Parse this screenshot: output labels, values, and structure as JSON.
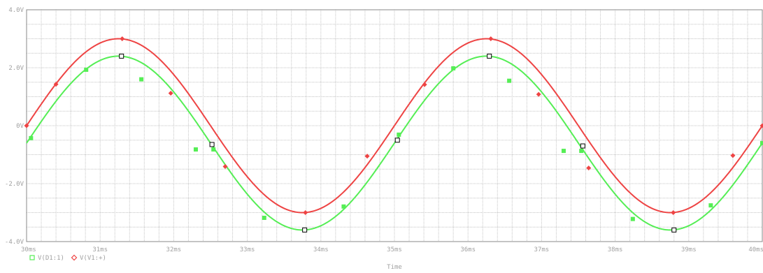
{
  "chart_data": {
    "type": "line",
    "xlabel": "Time",
    "ylabel": "",
    "xlim": [
      30,
      40
    ],
    "ylim": [
      -4,
      4
    ],
    "x_ticks": [
      "30ms",
      "31ms",
      "32ms",
      "33ms",
      "34ms",
      "35ms",
      "36ms",
      "37ms",
      "38ms",
      "39ms",
      "40ms"
    ],
    "y_ticks": [
      {
        "value": 4,
        "label": "4.0V"
      },
      {
        "value": 2,
        "label": "2.0V"
      },
      {
        "value": 0,
        "label": "0V"
      },
      {
        "value": -2,
        "label": "-2.0V"
      },
      {
        "value": -4,
        "label": "-4.0V"
      }
    ],
    "grid": true,
    "legend_position": "bottom-left",
    "series": [
      {
        "name": "V(D1:1)",
        "color": "#55ee55",
        "marker": "square",
        "amplitude": 3.0,
        "offset": -0.6,
        "frequency_khz": 0.2,
        "marker_x": [
          30.06,
          30.81,
          31.29,
          31.56,
          32.3,
          32.54,
          33.23,
          33.78,
          34.31,
          35.06,
          35.8,
          36.29,
          36.56,
          37.3,
          37.54,
          38.24,
          38.8,
          39.3,
          40.0
        ],
        "marker_y": [
          -0.43,
          1.93,
          2.4,
          1.6,
          -0.82,
          -0.82,
          -3.18,
          -3.6,
          -2.79,
          -0.31,
          1.98,
          2.4,
          1.55,
          -0.87,
          -0.87,
          -3.22,
          -3.6,
          -2.75,
          -0.6
        ]
      },
      {
        "name": "V(V1:+)",
        "color": "#ee4444",
        "marker": "diamond",
        "amplitude": 3.0,
        "offset": 0,
        "frequency_khz": 0.2,
        "marker_x": [
          30.0,
          30.4,
          31.3,
          31.96,
          32.7,
          33.79,
          34.63,
          35.41,
          36.31,
          36.96,
          37.64,
          38.79,
          39.6,
          40.0
        ],
        "marker_y": [
          0,
          1.43,
          3.0,
          1.12,
          -1.41,
          -3.0,
          -1.05,
          1.42,
          3.0,
          1.08,
          -1.46,
          -3.0,
          -1.03,
          0
        ]
      }
    ],
    "cursor_points": {
      "color": "#000000",
      "x": [
        31.29,
        32.52,
        33.78,
        35.04,
        36.29,
        37.56,
        38.8
      ],
      "y": [
        2.4,
        -0.65,
        -3.6,
        -0.5,
        2.4,
        -0.7,
        -3.6
      ]
    }
  }
}
